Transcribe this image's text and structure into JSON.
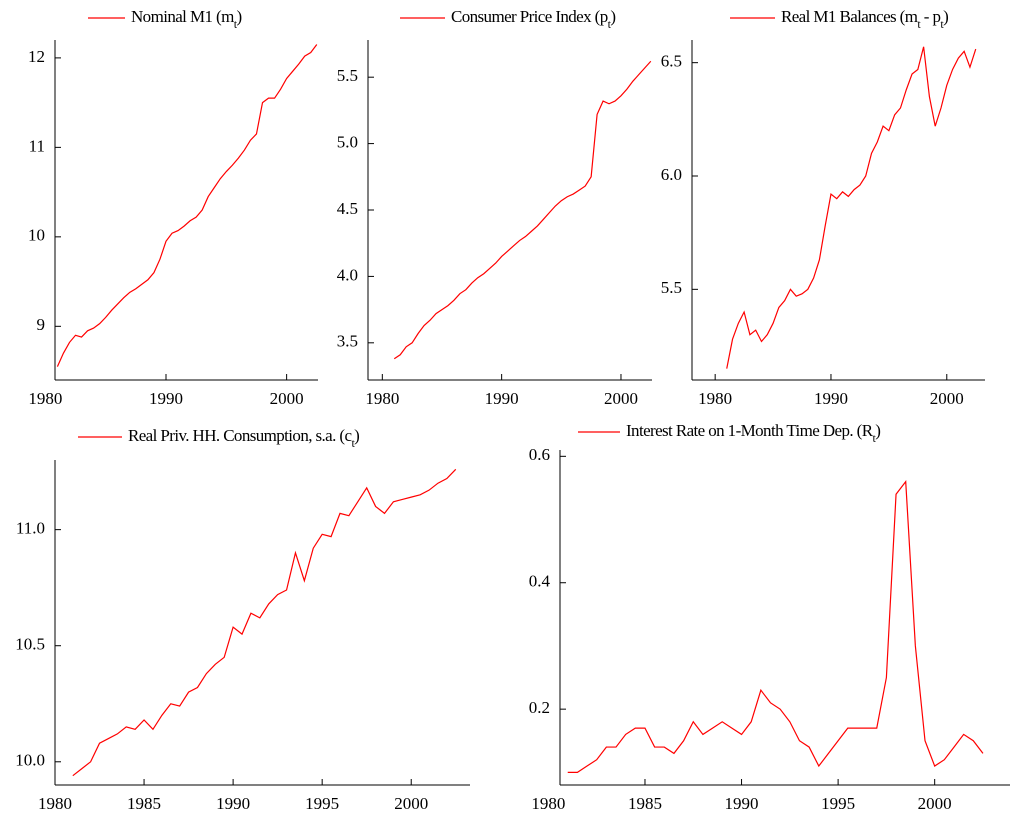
{
  "chart_data": [
    {
      "type": "line",
      "x": [
        1981,
        1981.5,
        1982,
        1982.5,
        1983,
        1983.5,
        1984,
        1984.5,
        1985,
        1985.5,
        1986,
        1986.5,
        1987,
        1987.5,
        1988,
        1988.5,
        1989,
        1989.5,
        1990,
        1990.5,
        1991,
        1991.5,
        1992,
        1992.5,
        1993,
        1993.5,
        1994,
        1994.5,
        1995,
        1995.5,
        1996,
        1996.5,
        1997,
        1997.5,
        1998,
        1998.5,
        1999,
        1999.5,
        2000,
        2000.5,
        2001,
        2001.5,
        2002,
        2002.5
      ],
      "series": [
        {
          "name": [
            "Nominal M1 (m",
            "t",
            ")"
          ],
          "color": "#ff0000",
          "values": [
            8.55,
            8.7,
            8.82,
            8.9,
            8.88,
            8.95,
            8.98,
            9.03,
            9.1,
            9.18,
            9.25,
            9.32,
            9.38,
            9.42,
            9.47,
            9.52,
            9.6,
            9.75,
            9.95,
            10.04,
            10.07,
            10.12,
            10.18,
            10.22,
            10.3,
            10.45,
            10.55,
            10.65,
            10.73,
            10.8,
            10.88,
            10.97,
            11.08,
            11.15,
            11.5,
            11.55,
            11.55,
            11.65,
            11.77,
            11.85,
            11.93,
            12.02,
            12.06,
            12.15
          ]
        }
      ],
      "xlim": [
        1980.8,
        2002.6
      ],
      "xticks": [
        1980,
        1990,
        2000
      ],
      "ylim": [
        8.4,
        12.2
      ],
      "yticks": [
        9,
        10,
        11,
        12
      ]
    },
    {
      "type": "line",
      "x": [
        1981,
        1981.5,
        1982,
        1982.5,
        1983,
        1983.5,
        1984,
        1984.5,
        1985,
        1985.5,
        1986,
        1986.5,
        1987,
        1987.5,
        1988,
        1988.5,
        1989,
        1989.5,
        1990,
        1990.5,
        1991,
        1991.5,
        1992,
        1992.5,
        1993,
        1993.5,
        1994,
        1994.5,
        1995,
        1995.5,
        1996,
        1996.5,
        1997,
        1997.5,
        1998,
        1998.5,
        1999,
        1999.5,
        2000,
        2000.5,
        2001,
        2001.5,
        2002,
        2002.5
      ],
      "series": [
        {
          "name": [
            "Consumer  Price Index (p",
            "t",
            ")"
          ],
          "color": "#ff0000",
          "values": [
            3.38,
            3.41,
            3.47,
            3.5,
            3.57,
            3.63,
            3.67,
            3.72,
            3.75,
            3.78,
            3.82,
            3.87,
            3.9,
            3.95,
            3.99,
            4.02,
            4.06,
            4.1,
            4.15,
            4.19,
            4.23,
            4.27,
            4.3,
            4.34,
            4.38,
            4.43,
            4.48,
            4.53,
            4.57,
            4.6,
            4.62,
            4.65,
            4.68,
            4.75,
            5.22,
            5.32,
            5.3,
            5.32,
            5.36,
            5.41,
            5.47,
            5.52,
            5.57,
            5.62
          ]
        }
      ],
      "xlim": [
        1978.8,
        2002.6
      ],
      "xticks": [
        1980,
        1990,
        2000
      ],
      "ylim": [
        3.22,
        5.78
      ],
      "yticks": [
        3.5,
        {
          "value": 4,
          "label": "4.0"
        },
        4.5,
        {
          "value": 5,
          "label": "5.0"
        },
        5.5
      ]
    },
    {
      "type": "line",
      "x": [
        1981,
        1981.5,
        1982,
        1982.5,
        1983,
        1983.5,
        1984,
        1984.5,
        1985,
        1985.5,
        1986,
        1986.5,
        1987,
        1987.5,
        1988,
        1988.5,
        1989,
        1989.5,
        1990,
        1990.5,
        1991,
        1991.5,
        1992,
        1992.5,
        1993,
        1993.5,
        1994,
        1994.5,
        1995,
        1995.5,
        1996,
        1996.5,
        1997,
        1997.5,
        1998,
        1998.5,
        1999,
        1999.5,
        2000,
        2000.5,
        2001,
        2001.5,
        2002,
        2002.5
      ],
      "series": [
        {
          "name": [
            "Real M1 Balances (m",
            "t",
            " - p",
            "t",
            ")"
          ],
          "color": "#ff0000",
          "values": [
            5.15,
            5.28,
            5.35,
            5.4,
            5.3,
            5.32,
            5.27,
            5.3,
            5.35,
            5.42,
            5.45,
            5.5,
            5.47,
            5.48,
            5.5,
            5.55,
            5.63,
            5.78,
            5.92,
            5.9,
            5.93,
            5.91,
            5.94,
            5.96,
            6.0,
            6.1,
            6.15,
            6.22,
            6.2,
            6.27,
            6.3,
            6.38,
            6.45,
            6.47,
            6.57,
            6.35,
            6.22,
            6.3,
            6.4,
            6.47,
            6.52,
            6.55,
            6.48,
            6.56
          ]
        }
      ],
      "xlim": [
        1978.0,
        2003.3
      ],
      "xticks": [
        1980,
        1990,
        2000
      ],
      "ylim": [
        5.1,
        6.6
      ],
      "yticks": [
        5.5,
        {
          "value": 6,
          "label": "6.0"
        },
        6.5
      ]
    },
    {
      "type": "line",
      "x": [
        1981,
        1981.5,
        1982,
        1982.5,
        1983,
        1983.5,
        1984,
        1984.5,
        1985,
        1985.5,
        1986,
        1986.5,
        1987,
        1987.5,
        1988,
        1988.5,
        1989,
        1989.5,
        1990,
        1990.5,
        1991,
        1991.5,
        1992,
        1992.5,
        1993,
        1993.5,
        1994,
        1994.5,
        1995,
        1995.5,
        1996,
        1996.5,
        1997,
        1997.5,
        1998,
        1998.5,
        1999,
        1999.5,
        2000,
        2000.5,
        2001,
        2001.5,
        2002,
        2002.5
      ],
      "series": [
        {
          "name": [
            "Real Priv. HH. Consumption, s.a. (c",
            "t",
            ")"
          ],
          "color": "#ff0000",
          "values": [
            9.94,
            9.97,
            10.0,
            10.08,
            10.1,
            10.12,
            10.15,
            10.14,
            10.18,
            10.14,
            10.2,
            10.25,
            10.24,
            10.3,
            10.32,
            10.38,
            10.42,
            10.45,
            10.58,
            10.55,
            10.64,
            10.62,
            10.68,
            10.72,
            10.74,
            10.9,
            10.78,
            10.92,
            10.98,
            10.97,
            11.07,
            11.06,
            11.12,
            11.18,
            11.1,
            11.07,
            11.12,
            11.13,
            11.14,
            11.15,
            11.17,
            11.2,
            11.22,
            11.26
          ]
        }
      ],
      "xlim": [
        1980,
        2003.3
      ],
      "xticks": [
        1980,
        1985,
        1990,
        1995,
        2000
      ],
      "ylim": [
        9.9,
        11.3
      ],
      "yticks": [
        {
          "value": 10,
          "label": "10.0"
        },
        10.5,
        {
          "value": 11,
          "label": "11.0"
        }
      ]
    },
    {
      "type": "line",
      "x": [
        1981,
        1981.5,
        1982,
        1982.5,
        1983,
        1983.5,
        1984,
        1984.5,
        1985,
        1985.5,
        1986,
        1986.5,
        1987,
        1987.5,
        1988,
        1988.5,
        1989,
        1989.5,
        1990,
        1990.5,
        1991,
        1991.5,
        1992,
        1992.5,
        1993,
        1993.5,
        1994,
        1994.5,
        1995,
        1995.5,
        1996,
        1996.5,
        1997,
        1997.5,
        1998,
        1998.5,
        1999,
        1999.5,
        2000,
        2000.5,
        2001,
        2001.5,
        2002,
        2002.5
      ],
      "series": [
        {
          "name": [
            "Interest Rate on 1-Month Time Dep. (R",
            "t",
            ")"
          ],
          "color": "#ff0000",
          "values": [
            0.1,
            0.1,
            0.11,
            0.12,
            0.14,
            0.14,
            0.16,
            0.17,
            0.17,
            0.14,
            0.14,
            0.13,
            0.15,
            0.18,
            0.16,
            0.17,
            0.18,
            0.17,
            0.16,
            0.18,
            0.23,
            0.21,
            0.2,
            0.18,
            0.15,
            0.14,
            0.11,
            0.13,
            0.15,
            0.17,
            0.17,
            0.17,
            0.17,
            0.25,
            0.54,
            0.56,
            0.3,
            0.15,
            0.11,
            0.12,
            0.14,
            0.16,
            0.15,
            0.13
          ]
        }
      ],
      "xlim": [
        1980.6,
        2003.9
      ],
      "xticks": [
        1980,
        1985,
        1990,
        1995,
        2000
      ],
      "ylim": [
        0.08,
        0.61
      ],
      "yticks": [
        0.2,
        0.4,
        0.6
      ]
    }
  ]
}
